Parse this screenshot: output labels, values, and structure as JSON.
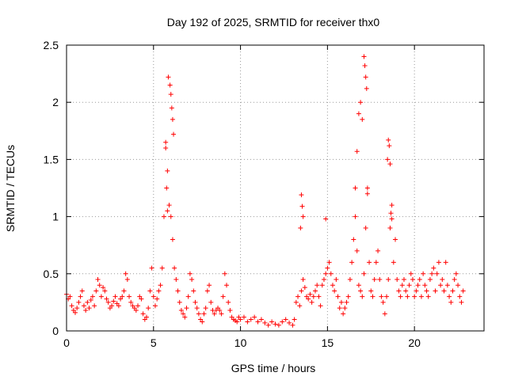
{
  "chart_data": {
    "type": "scatter",
    "title": "Day 192 of 2025, SRMTID for receiver thx0",
    "xlabel": "GPS time / hours",
    "ylabel": "SRMTID / TECUs",
    "xlim": [
      0,
      24
    ],
    "ylim": [
      0,
      2.5
    ],
    "xticks": [
      0,
      5,
      10,
      15,
      20
    ],
    "xtick_labels": [
      "0",
      "5",
      "10",
      "15",
      "20"
    ],
    "yticks": [
      0,
      0.5,
      1,
      1.5,
      2,
      2.5
    ],
    "ytick_labels": [
      "0",
      "0.5",
      "1",
      "1.5",
      "2",
      "2.5"
    ],
    "grid": true,
    "marker": "+",
    "marker_color": "#ff0000",
    "series": [
      {
        "name": "SRMTID",
        "x": [
          0.0,
          0.1,
          0.2,
          0.3,
          0.4,
          0.5,
          0.6,
          0.7,
          0.8,
          0.9,
          1.0,
          1.1,
          1.2,
          1.3,
          1.4,
          1.5,
          1.6,
          1.7,
          1.8,
          1.9,
          2.0,
          2.1,
          2.2,
          2.3,
          2.4,
          2.5,
          2.6,
          2.7,
          2.8,
          2.9,
          3.0,
          3.1,
          3.2,
          3.3,
          3.4,
          3.5,
          3.6,
          3.7,
          3.8,
          3.9,
          4.0,
          4.1,
          4.2,
          4.3,
          4.4,
          4.5,
          4.6,
          4.7,
          4.8,
          4.9,
          5.0,
          5.1,
          5.2,
          5.3,
          5.4,
          5.5,
          5.6,
          5.7,
          5.8,
          5.9,
          6.0,
          6.1,
          6.2,
          6.3,
          6.4,
          6.5,
          6.6,
          6.7,
          6.8,
          6.9,
          7.0,
          7.1,
          7.2,
          7.3,
          7.4,
          7.5,
          7.6,
          7.7,
          7.8,
          7.9,
          8.0,
          8.1,
          8.2,
          8.3,
          8.4,
          8.5,
          8.6,
          8.7,
          8.8,
          8.9,
          9.0,
          9.1,
          9.2,
          9.3,
          9.4,
          9.5,
          9.6,
          9.7,
          9.8,
          9.9,
          10.0,
          10.2,
          10.4,
          10.6,
          10.8,
          11.0,
          11.2,
          11.4,
          11.6,
          11.8,
          12.0,
          12.2,
          12.4,
          12.6,
          12.8,
          13.0,
          13.1,
          13.2,
          13.3,
          13.4,
          13.5,
          13.6,
          13.7,
          13.8,
          13.9,
          14.0,
          14.1,
          14.2,
          14.3,
          14.4,
          14.5,
          14.6,
          14.7,
          14.8,
          14.9,
          15.0,
          15.1,
          15.2,
          15.3,
          15.4,
          15.5,
          15.6,
          15.7,
          15.8,
          15.9,
          16.0,
          16.1,
          16.2,
          16.3,
          16.4,
          16.5,
          16.6,
          16.7,
          16.8,
          16.9,
          17.0,
          17.1,
          17.2,
          17.3,
          17.4,
          17.5,
          17.6,
          17.7,
          17.8,
          17.9,
          18.0,
          18.1,
          18.2,
          18.3,
          18.4,
          18.5,
          18.6,
          18.7,
          18.8,
          18.9,
          19.0,
          19.1,
          19.2,
          19.3,
          19.4,
          19.5,
          19.6,
          19.7,
          19.8,
          19.9,
          20.0,
          20.1,
          20.2,
          20.3,
          20.4,
          20.5,
          20.6,
          20.7,
          20.8,
          20.9,
          21.0,
          21.1,
          21.2,
          21.3,
          21.4,
          21.5,
          21.6,
          21.7,
          21.8,
          21.9,
          22.0,
          22.1,
          22.2,
          22.3,
          22.4,
          22.5,
          22.6,
          22.7,
          22.8,
          5.7,
          5.75,
          5.8,
          5.85,
          5.95,
          6.0,
          6.05,
          6.1,
          6.15,
          13.5,
          13.55,
          16.6,
          16.7,
          16.8,
          17.1,
          17.15,
          17.2,
          17.25,
          18.5,
          18.55,
          18.6,
          14.9,
          13.45,
          13.6,
          16.9,
          17.0,
          17.3,
          18.45,
          18.65,
          18.7
        ],
        "y": [
          0.32,
          0.28,
          0.3,
          0.22,
          0.18,
          0.16,
          0.2,
          0.25,
          0.3,
          0.35,
          0.22,
          0.18,
          0.25,
          0.2,
          0.27,
          0.3,
          0.22,
          0.35,
          0.45,
          0.4,
          0.3,
          0.38,
          0.35,
          0.28,
          0.25,
          0.2,
          0.22,
          0.26,
          0.3,
          0.24,
          0.22,
          0.28,
          0.3,
          0.35,
          0.5,
          0.45,
          0.3,
          0.25,
          0.22,
          0.2,
          0.18,
          0.22,
          0.3,
          0.28,
          0.15,
          0.1,
          0.12,
          0.2,
          0.35,
          0.55,
          0.3,
          0.22,
          0.28,
          0.35,
          0.4,
          0.55,
          1.0,
          1.6,
          1.4,
          1.1,
          1.0,
          0.8,
          0.55,
          0.45,
          0.35,
          0.25,
          0.18,
          0.15,
          0.12,
          0.2,
          0.3,
          0.5,
          0.45,
          0.35,
          0.25,
          0.2,
          0.15,
          0.1,
          0.08,
          0.15,
          0.2,
          0.35,
          0.4,
          0.25,
          0.18,
          0.15,
          0.18,
          0.2,
          0.18,
          0.15,
          0.3,
          0.5,
          0.4,
          0.25,
          0.18,
          0.12,
          0.1,
          0.09,
          0.08,
          0.12,
          0.1,
          0.12,
          0.08,
          0.1,
          0.12,
          0.08,
          0.1,
          0.07,
          0.05,
          0.08,
          0.06,
          0.05,
          0.08,
          0.1,
          0.07,
          0.05,
          0.1,
          0.25,
          0.3,
          0.22,
          0.35,
          0.45,
          0.38,
          0.3,
          0.28,
          0.32,
          0.25,
          0.3,
          0.35,
          0.4,
          0.3,
          0.22,
          0.4,
          0.45,
          0.5,
          0.55,
          0.6,
          0.5,
          0.4,
          0.35,
          0.45,
          0.3,
          0.2,
          0.25,
          0.15,
          0.2,
          0.25,
          0.3,
          0.45,
          0.6,
          0.8,
          1.0,
          0.7,
          0.4,
          0.35,
          0.3,
          0.5,
          0.9,
          1.2,
          0.6,
          0.35,
          0.3,
          0.45,
          0.6,
          0.7,
          0.45,
          0.3,
          0.25,
          0.15,
          0.3,
          0.45,
          0.9,
          1.1,
          0.6,
          0.8,
          0.45,
          0.35,
          0.3,
          0.4,
          0.45,
          0.35,
          0.3,
          0.4,
          0.5,
          0.45,
          0.3,
          0.35,
          0.4,
          0.45,
          0.3,
          0.5,
          0.4,
          0.35,
          0.3,
          0.45,
          0.5,
          0.55,
          0.35,
          0.5,
          0.6,
          0.4,
          0.45,
          0.35,
          0.6,
          0.4,
          0.3,
          0.25,
          0.35,
          0.45,
          0.5,
          0.4,
          0.3,
          0.25,
          0.35,
          1.65,
          1.25,
          1.05,
          2.22,
          2.15,
          2.07,
          1.95,
          1.85,
          1.72,
          1.19,
          1.09,
          1.25,
          1.57,
          1.9,
          2.4,
          2.32,
          2.22,
          2.12,
          1.67,
          1.62,
          1.46,
          0.98,
          0.9,
          1.0,
          2.0,
          1.85,
          1.25,
          1.5,
          1.03,
          0.98
        ]
      }
    ]
  }
}
